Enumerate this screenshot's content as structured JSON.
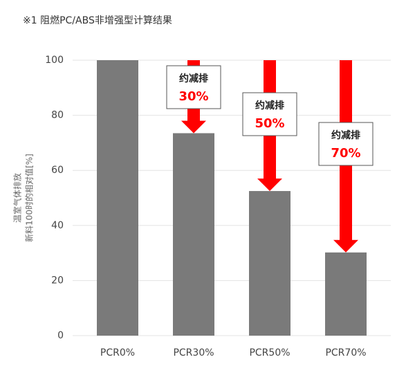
{
  "chart_data": {
    "type": "bar",
    "title": "※1 阻燃PC/ABS非增强型计算结果",
    "ylabel": [
      "温室气体排放",
      "新料100时的相对值[%]"
    ],
    "categories": [
      "PCR0%",
      "PCR30%",
      "PCR50%",
      "PCR70%"
    ],
    "values": [
      100,
      73.5,
      52.5,
      30.2
    ],
    "color": "#7a7a7a",
    "ylim": [
      0,
      100
    ],
    "yticks": [
      0,
      20,
      40,
      60,
      80,
      100
    ],
    "grid": true,
    "annotations": [
      {
        "text": "约减排",
        "label": "30%"
      },
      {
        "text": "约减排",
        "label": "50%"
      },
      {
        "text": "约减排",
        "label": "70%"
      }
    ],
    "annotation_color": "#ff0000"
  }
}
